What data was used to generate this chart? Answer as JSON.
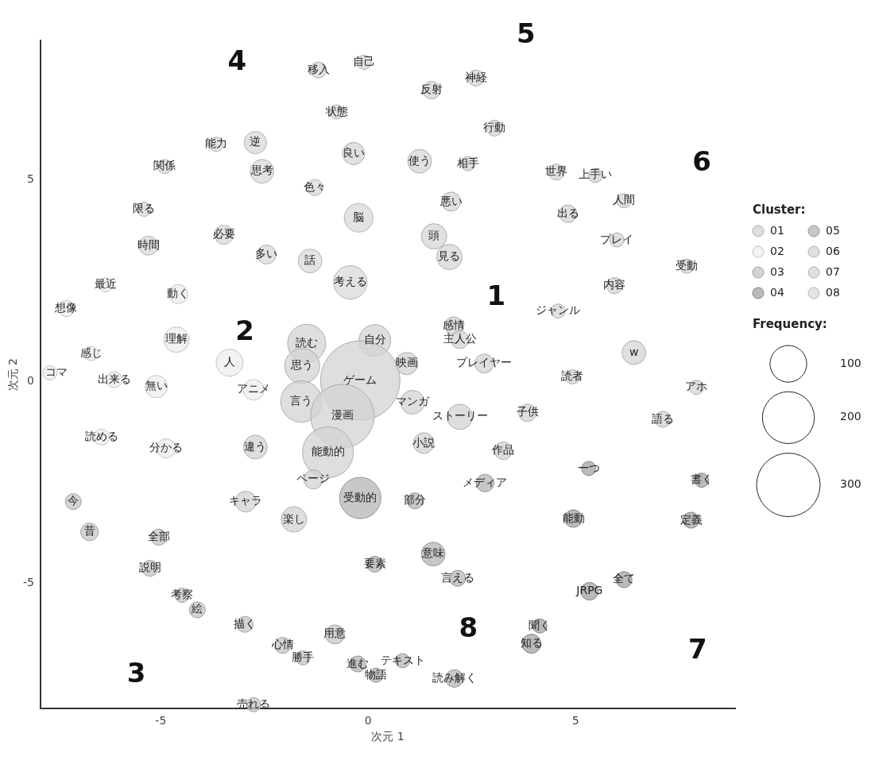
{
  "chart_data": {
    "type": "bubble",
    "xlabel": "次元 1",
    "ylabel": "次元 2",
    "legend_title": "Cluster:",
    "legend": "right",
    "xlim": [
      -7.9,
      8.85
    ],
    "ylim": [
      -8.1,
      8.45
    ],
    "xticks": [
      -5,
      0,
      5
    ],
    "yticks": [
      -5,
      0,
      5
    ],
    "size_legend": [
      100,
      200,
      300
    ],
    "annotations": [
      "Frequency:",
      "1",
      "2",
      "3",
      "4",
      "5",
      "6",
      "7",
      "8"
    ],
    "series": [
      {
        "name": "01",
        "color": "#d3d3d3",
        "x": [
          2.06,
          2.21,
          0.93,
          2.8,
          1.07,
          2.21,
          0.16,
          -0.19,
          -1.48,
          -1.59,
          -1.61,
          -0.62,
          -0.97,
          -1.32,
          1.34,
          3.26,
          -2.72,
          -2.95,
          -1.79
        ],
        "values": [
          1.39,
          1.04,
          0.45,
          0.45,
          -0.51,
          -0.87,
          1.02,
          0.03,
          0.95,
          0.39,
          -0.49,
          -0.85,
          -1.75,
          -2.42,
          -1.52,
          -1.71,
          -1.62,
          -2.97,
          -3.41
        ],
        "sizes": [
          23,
          23,
          37,
          27,
          42,
          48,
          75,
          469,
          108,
          91,
          127,
          300,
          192,
          27,
          32,
          23,
          42,
          32,
          48
        ],
        "value_labels": [
          "感情",
          "主人公",
          "映画",
          "プレイヤー",
          "マンガ",
          "ストーリー",
          "自分",
          "ゲーム",
          "読む",
          "思う",
          "言う",
          "漫画",
          "能動的",
          "ページ",
          "小説",
          "作品",
          "違う",
          "キャラ",
          "楽し"
        ]
      },
      {
        "name": "02",
        "color": "#eeeeee",
        "x": [
          -4.62,
          -6.68,
          -7.67,
          -6.12,
          -5.11,
          -6.43,
          -4.87,
          -3.34,
          -2.76,
          -6.33,
          -4.58,
          -7.28
        ],
        "values": [
          1.04,
          0.7,
          0.22,
          0.05,
          -0.12,
          -1.37,
          -1.65,
          0.47,
          -0.2,
          2.4,
          2.17,
          1.81
        ],
        "sizes": [
          48,
          15,
          15,
          19,
          37,
          19,
          27,
          54,
          32,
          15,
          27,
          19
        ],
        "value_labels": [
          "理解",
          "感じ",
          "コマ",
          "出来る",
          "無い",
          "読める",
          "分かる",
          "人",
          "アニメ",
          "最近",
          "動く",
          "想像"
        ]
      },
      {
        "name": "03",
        "color": "#c6c6c6",
        "x": [
          -7.11,
          -6.72,
          -5.05,
          -5.26,
          -4.49,
          -4.12,
          -2.97,
          -2.06,
          -1.57,
          -0.8,
          -2.76
        ],
        "values": [
          -2.97,
          -3.72,
          -3.85,
          -4.62,
          -5.29,
          -5.65,
          -6.01,
          -6.53,
          -6.84,
          -6.26,
          -8.0
        ],
        "sizes": [
          19,
          23,
          19,
          19,
          15,
          19,
          19,
          19,
          15,
          27,
          15
        ],
        "value_labels": [
          "今",
          "昔",
          "全部",
          "説明",
          "考察",
          "絵",
          "描く",
          "心情",
          "勝手",
          "用意",
          "売れる"
        ]
      },
      {
        "name": "04",
        "color": "#a3a3a3",
        "x": [
          5.32,
          8.04,
          4.95,
          7.79,
          6.17,
          5.34,
          4.14,
          3.94
        ],
        "values": [
          -2.15,
          -2.44,
          -3.39,
          -3.43,
          -4.9,
          -5.19,
          -6.05,
          -6.49
        ],
        "sizes": [
          15,
          15,
          23,
          19,
          19,
          23,
          15,
          27
        ],
        "value_labels": [
          "一つ",
          "書く",
          "能動",
          "定義",
          "全て",
          "JRPG",
          "聞く",
          "知る"
        ]
      },
      {
        "name": "05",
        "color": "#b6b6b6",
        "x": [
          -0.19,
          1.13,
          2.82,
          1.57,
          2.16,
          0.16,
          0.19,
          0.83,
          2.08,
          -0.25
        ],
        "values": [
          -2.88,
          -2.95,
          -2.51,
          -4.27,
          -4.87,
          -4.52,
          -7.27,
          -6.91,
          -7.35,
          -6.99
        ],
        "sizes": [
          127,
          19,
          23,
          42,
          19,
          19,
          15,
          15,
          23,
          19
        ],
        "value_labels": [
          "受動的",
          "部分",
          "メディア",
          "意味",
          "言える",
          "要素",
          "物語",
          "テキスト",
          "読み解く",
          "進む"
        ]
      },
      {
        "name": "06",
        "color": "#d6d6d6",
        "x": [
          -1.2,
          -0.1,
          -0.76,
          -0.35,
          1.53,
          2.6,
          3.05,
          1.24,
          2.41,
          2.0,
          1.59,
          1.96
        ],
        "values": [
          7.72,
          7.91,
          6.68,
          5.65,
          7.22,
          7.52,
          6.28,
          5.46,
          5.4,
          4.46,
          3.6,
          3.09
        ],
        "sizes": [
          19,
          15,
          15,
          37,
          23,
          19,
          19,
          42,
          15,
          27,
          48,
          48
        ],
        "value_labels": [
          "移入",
          "自己",
          "状態",
          "良い",
          "反射",
          "神経",
          "行動",
          "使う",
          "相手",
          "悪い",
          "頭",
          "見る"
        ]
      },
      {
        "name": "07",
        "color": "#d4d4d4",
        "x": [
          4.54,
          5.48,
          6.17,
          4.82,
          6.0,
          7.69,
          5.94,
          4.58,
          6.41,
          4.93,
          7.92,
          7.11,
          3.84
        ],
        "values": [
          5.19,
          5.11,
          4.48,
          4.16,
          3.51,
          2.86,
          2.38,
          1.75,
          0.72,
          0.12,
          -0.14,
          -0.93,
          -0.77
        ],
        "sizes": [
          19,
          15,
          15,
          23,
          15,
          15,
          19,
          15,
          42,
          15,
          15,
          19,
          23
        ],
        "value_labels": [
          "世界",
          "上手い",
          "人間",
          "出る",
          "プレイ",
          "受動",
          "内容",
          "ジャンル",
          "w",
          "読者",
          "アホ",
          "語る",
          "子供"
        ]
      },
      {
        "name": "08",
        "color": "#dadada",
        "x": [
          -3.67,
          -2.72,
          -4.91,
          -2.56,
          -1.28,
          -5.4,
          -5.3,
          -3.48,
          -2.45,
          -0.23,
          -1.4,
          -0.43
        ],
        "values": [
          5.88,
          5.92,
          5.33,
          5.21,
          4.81,
          4.27,
          3.37,
          3.64,
          3.15,
          4.06,
          2.99,
          2.46
        ],
        "sizes": [
          15,
          37,
          15,
          42,
          19,
          15,
          27,
          27,
          27,
          61,
          42,
          83
        ],
        "value_labels": [
          "能力",
          "逆",
          "関係",
          "思考",
          "色々",
          "限る",
          "時間",
          "必要",
          "多い",
          "脳",
          "話",
          "考える"
        ]
      }
    ]
  }
}
